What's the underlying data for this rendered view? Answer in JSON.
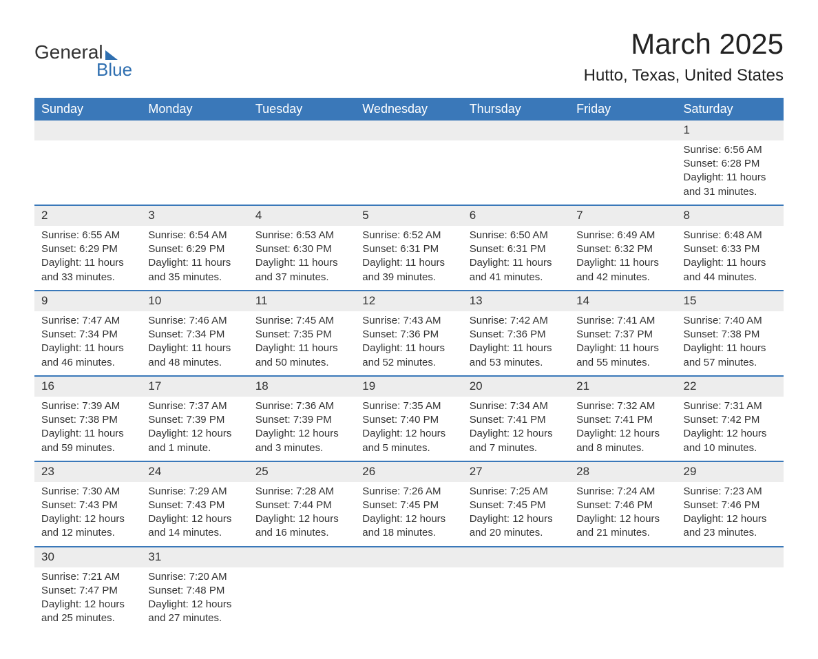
{
  "logo": {
    "word1": "General",
    "word2": "Blue"
  },
  "title": "March 2025",
  "location": "Hutto, Texas, United States",
  "colors": {
    "header_bg": "#3a78b9",
    "header_text": "#ffffff",
    "daynum_bg": "#ededed",
    "row_divider": "#3a78b9",
    "body_text": "#333333",
    "logo_accent": "#2f6fb0",
    "page_bg": "#ffffff"
  },
  "typography": {
    "title_fontsize": 42,
    "location_fontsize": 24,
    "dayheader_fontsize": 18,
    "daynum_fontsize": 17,
    "detail_fontsize": 15,
    "font_family": "Arial"
  },
  "layout": {
    "columns": 7,
    "weeks": 6,
    "week_starts_on": "Sunday"
  },
  "day_headers": [
    "Sunday",
    "Monday",
    "Tuesday",
    "Wednesday",
    "Thursday",
    "Friday",
    "Saturday"
  ],
  "weeks": [
    [
      null,
      null,
      null,
      null,
      null,
      null,
      {
        "n": "1",
        "sr": "Sunrise: 6:56 AM",
        "ss": "Sunset: 6:28 PM",
        "d1": "Daylight: 11 hours",
        "d2": "and 31 minutes."
      }
    ],
    [
      {
        "n": "2",
        "sr": "Sunrise: 6:55 AM",
        "ss": "Sunset: 6:29 PM",
        "d1": "Daylight: 11 hours",
        "d2": "and 33 minutes."
      },
      {
        "n": "3",
        "sr": "Sunrise: 6:54 AM",
        "ss": "Sunset: 6:29 PM",
        "d1": "Daylight: 11 hours",
        "d2": "and 35 minutes."
      },
      {
        "n": "4",
        "sr": "Sunrise: 6:53 AM",
        "ss": "Sunset: 6:30 PM",
        "d1": "Daylight: 11 hours",
        "d2": "and 37 minutes."
      },
      {
        "n": "5",
        "sr": "Sunrise: 6:52 AM",
        "ss": "Sunset: 6:31 PM",
        "d1": "Daylight: 11 hours",
        "d2": "and 39 minutes."
      },
      {
        "n": "6",
        "sr": "Sunrise: 6:50 AM",
        "ss": "Sunset: 6:31 PM",
        "d1": "Daylight: 11 hours",
        "d2": "and 41 minutes."
      },
      {
        "n": "7",
        "sr": "Sunrise: 6:49 AM",
        "ss": "Sunset: 6:32 PM",
        "d1": "Daylight: 11 hours",
        "d2": "and 42 minutes."
      },
      {
        "n": "8",
        "sr": "Sunrise: 6:48 AM",
        "ss": "Sunset: 6:33 PM",
        "d1": "Daylight: 11 hours",
        "d2": "and 44 minutes."
      }
    ],
    [
      {
        "n": "9",
        "sr": "Sunrise: 7:47 AM",
        "ss": "Sunset: 7:34 PM",
        "d1": "Daylight: 11 hours",
        "d2": "and 46 minutes."
      },
      {
        "n": "10",
        "sr": "Sunrise: 7:46 AM",
        "ss": "Sunset: 7:34 PM",
        "d1": "Daylight: 11 hours",
        "d2": "and 48 minutes."
      },
      {
        "n": "11",
        "sr": "Sunrise: 7:45 AM",
        "ss": "Sunset: 7:35 PM",
        "d1": "Daylight: 11 hours",
        "d2": "and 50 minutes."
      },
      {
        "n": "12",
        "sr": "Sunrise: 7:43 AM",
        "ss": "Sunset: 7:36 PM",
        "d1": "Daylight: 11 hours",
        "d2": "and 52 minutes."
      },
      {
        "n": "13",
        "sr": "Sunrise: 7:42 AM",
        "ss": "Sunset: 7:36 PM",
        "d1": "Daylight: 11 hours",
        "d2": "and 53 minutes."
      },
      {
        "n": "14",
        "sr": "Sunrise: 7:41 AM",
        "ss": "Sunset: 7:37 PM",
        "d1": "Daylight: 11 hours",
        "d2": "and 55 minutes."
      },
      {
        "n": "15",
        "sr": "Sunrise: 7:40 AM",
        "ss": "Sunset: 7:38 PM",
        "d1": "Daylight: 11 hours",
        "d2": "and 57 minutes."
      }
    ],
    [
      {
        "n": "16",
        "sr": "Sunrise: 7:39 AM",
        "ss": "Sunset: 7:38 PM",
        "d1": "Daylight: 11 hours",
        "d2": "and 59 minutes."
      },
      {
        "n": "17",
        "sr": "Sunrise: 7:37 AM",
        "ss": "Sunset: 7:39 PM",
        "d1": "Daylight: 12 hours",
        "d2": "and 1 minute."
      },
      {
        "n": "18",
        "sr": "Sunrise: 7:36 AM",
        "ss": "Sunset: 7:39 PM",
        "d1": "Daylight: 12 hours",
        "d2": "and 3 minutes."
      },
      {
        "n": "19",
        "sr": "Sunrise: 7:35 AM",
        "ss": "Sunset: 7:40 PM",
        "d1": "Daylight: 12 hours",
        "d2": "and 5 minutes."
      },
      {
        "n": "20",
        "sr": "Sunrise: 7:34 AM",
        "ss": "Sunset: 7:41 PM",
        "d1": "Daylight: 12 hours",
        "d2": "and 7 minutes."
      },
      {
        "n": "21",
        "sr": "Sunrise: 7:32 AM",
        "ss": "Sunset: 7:41 PM",
        "d1": "Daylight: 12 hours",
        "d2": "and 8 minutes."
      },
      {
        "n": "22",
        "sr": "Sunrise: 7:31 AM",
        "ss": "Sunset: 7:42 PM",
        "d1": "Daylight: 12 hours",
        "d2": "and 10 minutes."
      }
    ],
    [
      {
        "n": "23",
        "sr": "Sunrise: 7:30 AM",
        "ss": "Sunset: 7:43 PM",
        "d1": "Daylight: 12 hours",
        "d2": "and 12 minutes."
      },
      {
        "n": "24",
        "sr": "Sunrise: 7:29 AM",
        "ss": "Sunset: 7:43 PM",
        "d1": "Daylight: 12 hours",
        "d2": "and 14 minutes."
      },
      {
        "n": "25",
        "sr": "Sunrise: 7:28 AM",
        "ss": "Sunset: 7:44 PM",
        "d1": "Daylight: 12 hours",
        "d2": "and 16 minutes."
      },
      {
        "n": "26",
        "sr": "Sunrise: 7:26 AM",
        "ss": "Sunset: 7:45 PM",
        "d1": "Daylight: 12 hours",
        "d2": "and 18 minutes."
      },
      {
        "n": "27",
        "sr": "Sunrise: 7:25 AM",
        "ss": "Sunset: 7:45 PM",
        "d1": "Daylight: 12 hours",
        "d2": "and 20 minutes."
      },
      {
        "n": "28",
        "sr": "Sunrise: 7:24 AM",
        "ss": "Sunset: 7:46 PM",
        "d1": "Daylight: 12 hours",
        "d2": "and 21 minutes."
      },
      {
        "n": "29",
        "sr": "Sunrise: 7:23 AM",
        "ss": "Sunset: 7:46 PM",
        "d1": "Daylight: 12 hours",
        "d2": "and 23 minutes."
      }
    ],
    [
      {
        "n": "30",
        "sr": "Sunrise: 7:21 AM",
        "ss": "Sunset: 7:47 PM",
        "d1": "Daylight: 12 hours",
        "d2": "and 25 minutes."
      },
      {
        "n": "31",
        "sr": "Sunrise: 7:20 AM",
        "ss": "Sunset: 7:48 PM",
        "d1": "Daylight: 12 hours",
        "d2": "and 27 minutes."
      },
      null,
      null,
      null,
      null,
      null
    ]
  ]
}
